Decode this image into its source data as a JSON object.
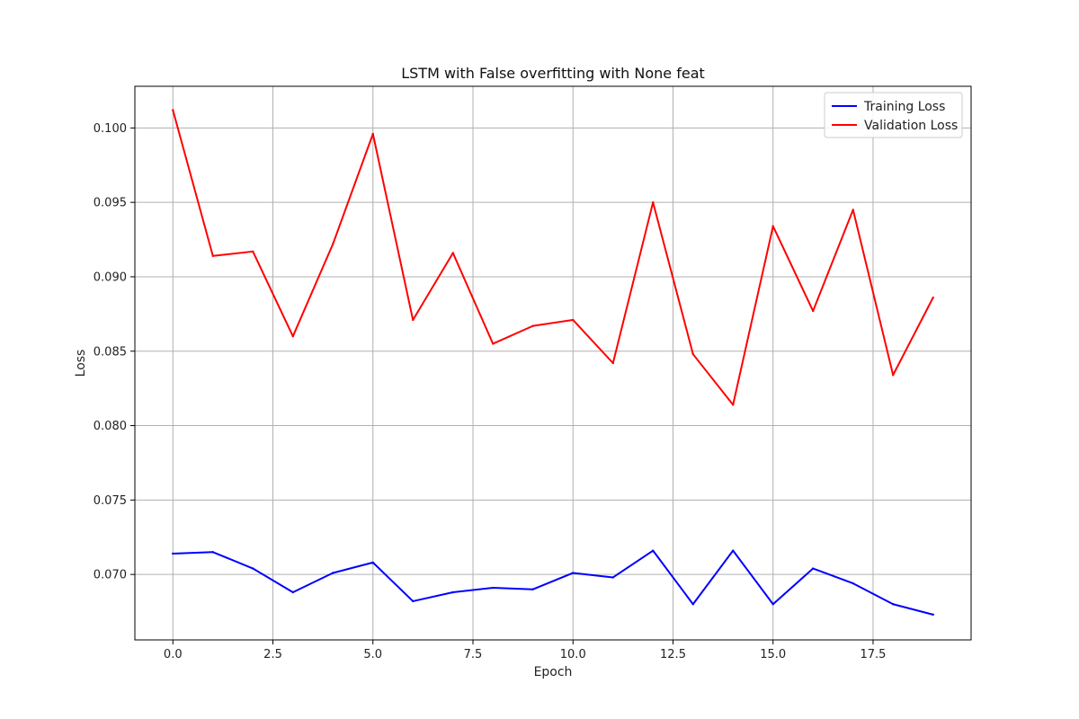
{
  "chart_data": {
    "type": "line",
    "title": "LSTM with False overfitting with None feat",
    "xlabel": "Epoch",
    "ylabel": "Loss",
    "x": [
      0,
      1,
      2,
      3,
      4,
      5,
      6,
      7,
      8,
      9,
      10,
      11,
      12,
      13,
      14,
      15,
      16,
      17,
      18,
      19
    ],
    "xlim": [
      -0.95,
      19.95
    ],
    "ylim": [
      0.0656,
      0.1028
    ],
    "xticks": [
      0.0,
      2.5,
      5.0,
      7.5,
      10.0,
      12.5,
      15.0,
      17.5
    ],
    "xtick_labels": [
      "0.0",
      "2.5",
      "5.0",
      "7.5",
      "10.0",
      "12.5",
      "15.0",
      "17.5"
    ],
    "yticks": [
      0.07,
      0.075,
      0.08,
      0.085,
      0.09,
      0.095,
      0.1
    ],
    "ytick_labels": [
      "0.070",
      "0.075",
      "0.080",
      "0.085",
      "0.090",
      "0.095",
      "0.100"
    ],
    "grid": true,
    "legend_position": "top-right",
    "series": [
      {
        "name": "Training Loss",
        "color": "#0000ff",
        "values": [
          0.0714,
          0.0715,
          0.0704,
          0.0688,
          0.0701,
          0.0708,
          0.0682,
          0.0688,
          0.0691,
          0.069,
          0.0701,
          0.0698,
          0.0716,
          0.068,
          0.0716,
          0.068,
          0.0704,
          0.0694,
          0.068,
          0.0673
        ]
      },
      {
        "name": "Validation Loss",
        "color": "#ff0000",
        "values": [
          0.1012,
          0.0914,
          0.0917,
          0.086,
          0.0922,
          0.0996,
          0.0871,
          0.0916,
          0.0855,
          0.0867,
          0.0871,
          0.0842,
          0.095,
          0.0848,
          0.0814,
          0.0934,
          0.0877,
          0.0945,
          0.0834,
          0.0886
        ]
      }
    ]
  }
}
